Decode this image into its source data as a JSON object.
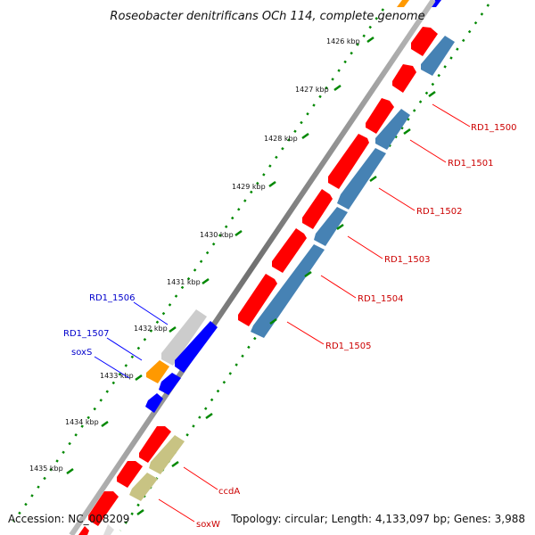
{
  "title": "Roseobacter denitrificans OCh 114, complete genome",
  "footer": {
    "accession": "Accession: NC_008209",
    "topology": "Topology: circular; Length: 4,133,097 bp; Genes: 3,988"
  },
  "ticks": [
    "1426 kbp",
    "1427 kbp",
    "1428 kbp",
    "1429 kbp",
    "1430 kbp",
    "1431 kbp",
    "1432 kbp",
    "1433 kbp",
    "1434 kbp",
    "1435 kbp"
  ],
  "gene_labels": {
    "rd1_1500": "RD1_1500",
    "rd1_1501": "RD1_1501",
    "rd1_1502": "RD1_1502",
    "rd1_1503": "RD1_1503",
    "rd1_1504": "RD1_1504",
    "rd1_1505": "RD1_1505",
    "rd1_1506": "RD1_1506",
    "rd1_1507": "RD1_1507",
    "soxS": "soxS",
    "ccdA": "ccdA",
    "soxW": "soxW"
  },
  "colors": {
    "cds_forward": "#ff0000",
    "cds_reverse": "#4682b4",
    "blue_features": "#0000ff",
    "grey_feature": "#cccccc",
    "orange_feature": "#ff9900",
    "khaki_feature": "#c8c383",
    "label_red": "#cc0000",
    "label_blue": "#0000cc",
    "backbone": "#808080",
    "tick_dots": "#008800"
  }
}
